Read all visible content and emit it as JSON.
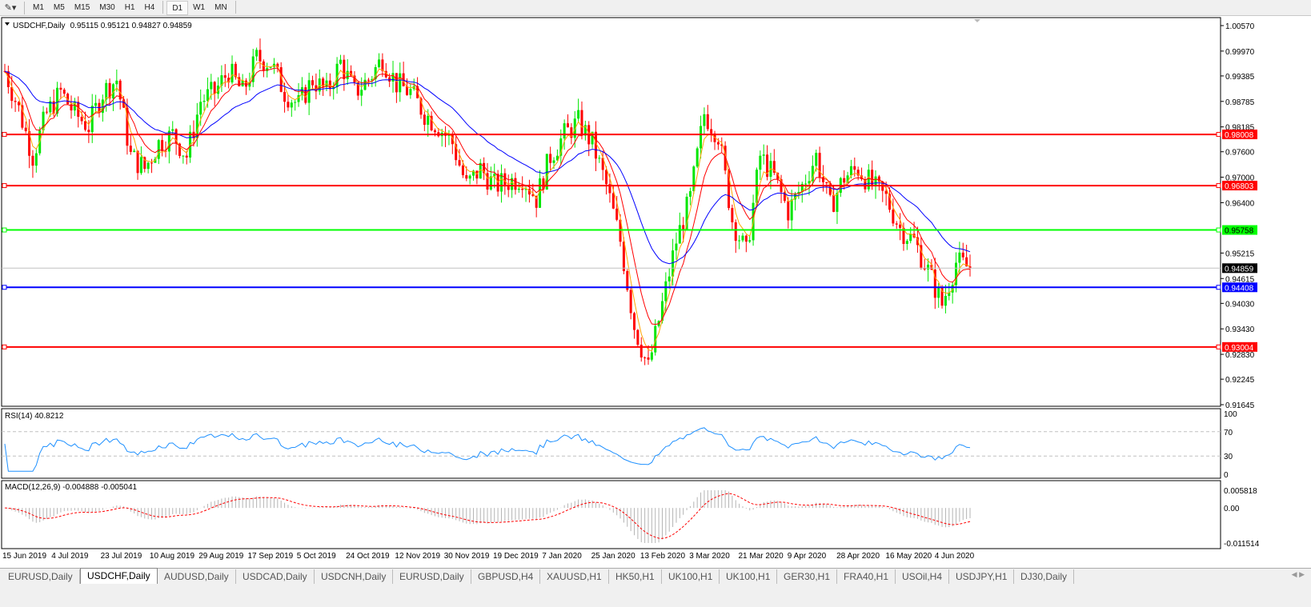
{
  "toolbar": {
    "tool_icon": "line-tools-icon",
    "timeframes": [
      "M1",
      "M5",
      "M15",
      "M30",
      "H1",
      "H4",
      "D1",
      "W1",
      "MN"
    ],
    "active": "D1"
  },
  "chart": {
    "symbol_label": "USDCHF,Daily",
    "ohlc": "0.95115 0.95121 0.94827 0.94859",
    "price_axis": [
      "1.00570",
      "0.99970",
      "0.99385",
      "0.98785",
      "0.98185",
      "0.97600",
      "0.97000",
      "0.96400",
      "0.95215",
      "0.94615",
      "0.94030",
      "0.93430",
      "0.92830",
      "0.92245",
      "0.91645"
    ],
    "price_range": [
      0.91645,
      1.0057
    ],
    "current_price": "0.94859",
    "hlines": [
      {
        "price": 0.98008,
        "label": "0.98008",
        "color": "#ff0000"
      },
      {
        "price": 0.96803,
        "label": "0.96803",
        "color": "#ff0000"
      },
      {
        "price": 0.95758,
        "label": "0.95758",
        "color": "#00ff00"
      },
      {
        "price": 0.94408,
        "label": "0.94408",
        "color": "#0000ff"
      },
      {
        "price": 0.93004,
        "label": "0.93004",
        "color": "#ff0000"
      }
    ],
    "colors": {
      "bull": "#00e600",
      "bear": "#ff0000",
      "ma_fast": "#ffa500",
      "ma_mid": "#ff0000",
      "ma_slow": "#0000ff",
      "rsi": "#1e90ff",
      "macd_signal": "#ff0000",
      "macd_hist": "#b4b4b4"
    },
    "approx_closes": [
      0.995,
      0.986,
      0.975,
      0.985,
      0.99,
      0.985,
      0.982,
      0.99,
      0.993,
      0.975,
      0.972,
      0.978,
      0.98,
      0.975,
      0.988,
      0.99,
      0.995,
      0.99,
      0.998,
      0.997,
      0.99,
      0.987,
      0.993,
      0.99,
      0.997,
      0.99,
      0.993,
      0.998,
      0.992,
      0.99,
      0.985,
      0.982,
      0.978,
      0.968,
      0.972,
      0.968,
      0.969,
      0.97,
      0.965,
      0.975,
      0.98,
      0.983,
      0.978,
      0.968,
      0.955,
      0.935,
      0.925,
      0.94,
      0.955,
      0.965,
      0.985,
      0.98,
      0.96,
      0.952,
      0.975,
      0.97,
      0.962,
      0.968,
      0.975,
      0.963,
      0.97,
      0.972,
      0.968,
      0.965,
      0.958,
      0.955,
      0.948,
      0.94,
      0.95,
      0.9486
    ]
  },
  "rsi": {
    "label": "RSI(14) 40.8212",
    "axis": [
      "100",
      "70",
      "30",
      "0"
    ]
  },
  "macd": {
    "label": "MACD(12,26,9) -0.004888 -0.005041",
    "axis": [
      "0.005818",
      "0.00",
      "-0.011514"
    ],
    "range": [
      -0.011514,
      0.005818
    ]
  },
  "dates": [
    "15 Jun 2019",
    "4 Jul 2019",
    "23 Jul 2019",
    "10 Aug 2019",
    "29 Aug 2019",
    "17 Sep 2019",
    "5 Oct 2019",
    "24 Oct 2019",
    "12 Nov 2019",
    "30 Nov 2019",
    "19 Dec 2019",
    "7 Jan 2020",
    "25 Jan 2020",
    "13 Feb 2020",
    "3 Mar 2020",
    "21 Mar 2020",
    "9 Apr 2020",
    "28 Apr 2020",
    "16 May 2020",
    "4 Jun 2020"
  ],
  "tabs": [
    "EURUSD,Daily",
    "USDCHF,Daily",
    "AUDUSD,Daily",
    "USDCAD,Daily",
    "USDCNH,Daily",
    "EURUSD,Daily",
    "GBPUSD,H4",
    "XAUUSD,H1",
    "HK50,H1",
    "UK100,H1",
    "UK100,H1",
    "GER30,H1",
    "FRA40,H1",
    "USOil,H4",
    "USDJPY,H1",
    "DJ30,Daily"
  ],
  "active_tab": "USDCHF,Daily"
}
